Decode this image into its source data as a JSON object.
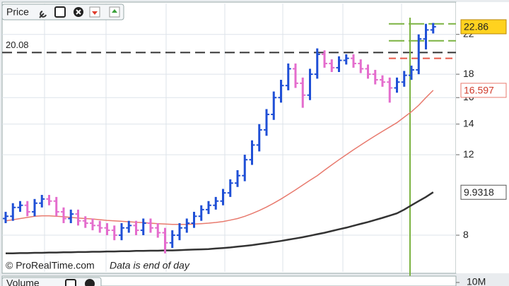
{
  "chart_data": {
    "type": "ohlc",
    "title": "Price",
    "categories": [
      null,
      null,
      null,
      null,
      null,
      null,
      null,
      null,
      null,
      null,
      null,
      null,
      null,
      null,
      null,
      null,
      null,
      null,
      null,
      null,
      null,
      null,
      null,
      null,
      null,
      null,
      null,
      null,
      null,
      null,
      null,
      null,
      null,
      null,
      null,
      null,
      null,
      null,
      null,
      null,
      null,
      null,
      null,
      null,
      null,
      null,
      null,
      null,
      null,
      null,
      null,
      null,
      null,
      null,
      null,
      null,
      null,
      null,
      null,
      null
    ],
    "open": [
      8.7,
      8.8,
      9.2,
      9.3,
      9.0,
      9.4,
      9.6,
      9.5,
      9.0,
      8.7,
      8.9,
      8.6,
      8.5,
      8.4,
      8.3,
      8.2,
      8.0,
      8.3,
      8.4,
      8.2,
      8.5,
      8.3,
      8.1,
      7.7,
      8.0,
      8.3,
      8.5,
      8.8,
      9.1,
      9.3,
      9.5,
      9.9,
      10.4,
      10.8,
      11.7,
      12.6,
      13.6,
      14.7,
      16.0,
      17.0,
      18.5,
      17.2,
      16.2,
      18.0,
      19.9,
      19.0,
      18.6,
      19.3,
      19.5,
      19.0,
      18.5,
      18.0,
      17.5,
      17.3,
      16.8,
      17.3,
      17.9,
      18.4,
      21.5,
      22.5
    ],
    "high": [
      9.0,
      9.4,
      9.5,
      9.5,
      9.6,
      9.8,
      9.8,
      9.7,
      9.2,
      9.1,
      9.1,
      8.8,
      8.7,
      8.6,
      8.5,
      8.4,
      8.5,
      8.6,
      8.6,
      8.7,
      8.7,
      8.5,
      8.3,
      8.2,
      8.5,
      8.7,
      9.0,
      9.3,
      9.5,
      9.7,
      10.1,
      10.6,
      11.1,
      12.0,
      12.9,
      14.0,
      15.1,
      16.5,
      17.5,
      19.0,
      19.0,
      17.7,
      18.5,
      20.5,
      20.3,
      19.4,
      19.7,
      19.9,
      19.9,
      19.4,
      18.9,
      18.4,
      17.9,
      17.7,
      17.7,
      18.3,
      18.8,
      22.0,
      23.2,
      23.3
    ],
    "low": [
      8.5,
      8.6,
      9.0,
      8.8,
      8.8,
      9.2,
      9.3,
      8.8,
      8.5,
      8.5,
      8.4,
      8.3,
      8.2,
      8.1,
      8.0,
      7.8,
      7.8,
      8.1,
      8.0,
      8.0,
      8.1,
      7.9,
      7.3,
      7.5,
      7.8,
      8.1,
      8.3,
      8.6,
      8.9,
      9.1,
      9.3,
      9.7,
      10.2,
      10.5,
      11.4,
      12.2,
      13.2,
      14.3,
      15.6,
      16.6,
      16.8,
      15.2,
      15.8,
      17.6,
      18.6,
      18.2,
      18.2,
      18.9,
      18.6,
      18.1,
      17.6,
      17.1,
      16.9,
      15.6,
      16.4,
      16.9,
      17.5,
      18.0,
      20.4,
      22.1
    ],
    "close": [
      8.8,
      9.2,
      9.3,
      9.0,
      9.4,
      9.6,
      9.5,
      9.0,
      8.7,
      8.9,
      8.6,
      8.5,
      8.4,
      8.3,
      8.2,
      8.0,
      8.3,
      8.4,
      8.2,
      8.5,
      8.3,
      8.1,
      7.7,
      8.0,
      8.3,
      8.5,
      8.8,
      9.1,
      9.3,
      9.5,
      9.9,
      10.4,
      10.8,
      11.7,
      12.6,
      13.6,
      14.7,
      16.0,
      17.0,
      18.5,
      17.2,
      16.2,
      18.0,
      19.9,
      19.0,
      18.6,
      19.3,
      19.5,
      19.0,
      18.5,
      18.0,
      17.5,
      17.3,
      16.8,
      17.3,
      17.9,
      18.4,
      21.5,
      22.5,
      22.86
    ],
    "up_color": "#1f4fd6",
    "down_color": "#e46ccd",
    "lines": [
      {
        "color": "#e87a6e",
        "values": [
          8.6,
          8.65,
          8.7,
          8.75,
          8.8,
          8.82,
          8.82,
          8.8,
          8.78,
          8.75,
          8.72,
          8.7,
          8.68,
          8.65,
          8.62,
          8.6,
          8.58,
          8.56,
          8.54,
          8.52,
          8.5,
          8.48,
          8.46,
          8.45,
          8.45,
          8.45,
          8.46,
          8.48,
          8.5,
          8.53,
          8.57,
          8.63,
          8.7,
          8.8,
          8.92,
          9.06,
          9.22,
          9.4,
          9.6,
          9.82,
          10.05,
          10.3,
          10.55,
          10.8,
          11.1,
          11.4,
          11.7,
          12.0,
          12.3,
          12.6,
          12.9,
          13.2,
          13.5,
          13.8,
          14.1,
          14.5,
          14.9,
          15.4,
          16.0,
          16.597
        ]
      },
      {
        "color": "#333333",
        "values": [
          7.3,
          7.3,
          7.31,
          7.31,
          7.32,
          7.32,
          7.33,
          7.33,
          7.34,
          7.34,
          7.35,
          7.35,
          7.36,
          7.36,
          7.37,
          7.37,
          7.38,
          7.38,
          7.39,
          7.39,
          7.4,
          7.4,
          7.41,
          7.41,
          7.42,
          7.43,
          7.44,
          7.45,
          7.46,
          7.48,
          7.5,
          7.52,
          7.55,
          7.58,
          7.61,
          7.65,
          7.69,
          7.73,
          7.77,
          7.82,
          7.87,
          7.92,
          7.98,
          8.04,
          8.1,
          8.17,
          8.24,
          8.31,
          8.39,
          8.47,
          8.55,
          8.64,
          8.73,
          8.83,
          8.93,
          9.1,
          9.3,
          9.5,
          9.7,
          9.9318
        ]
      }
    ],
    "hline": {
      "value": 20.08,
      "label": "20.08"
    },
    "levels": [
      {
        "value": 23.2,
        "color": "#7cb342"
      },
      {
        "value": 21.3,
        "color": "#7cb342"
      },
      {
        "value": 19.5,
        "color": "#e85a4a"
      }
    ],
    "ylim": [
      6.65,
      25.7
    ],
    "log_scale": true,
    "grid": true,
    "yticks": [
      8,
      12,
      14,
      16,
      18,
      22
    ],
    "volume": {
      "title": "Volume",
      "yticks": [
        {
          "value": 10000000,
          "label": "10M"
        }
      ]
    },
    "footer": {
      "copyright": "© ProRealTime.com",
      "note": "Data is end of day"
    }
  }
}
